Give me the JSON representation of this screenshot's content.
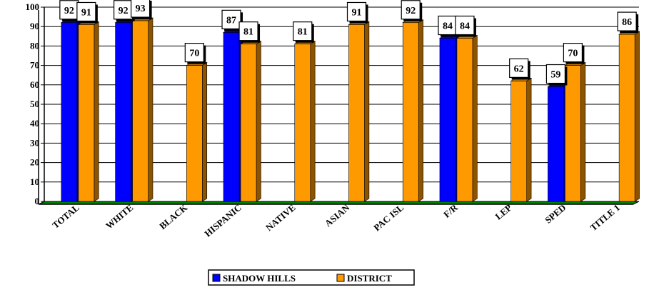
{
  "chart_data": {
    "type": "bar",
    "categories": [
      "TOTAL",
      "WHITE",
      "BLACK",
      "HISPANIC",
      "NATIVE",
      "ASIAN",
      "PAC ISL",
      "F/R",
      "LEP",
      "SPED",
      "TITLE 1"
    ],
    "series": [
      {
        "name": "SHADOW HILLS",
        "color": "#0000FF",
        "values": [
          92,
          92,
          null,
          87,
          null,
          null,
          null,
          84,
          null,
          59,
          null
        ]
      },
      {
        "name": "DISTRICT",
        "color": "#FF9900",
        "values": [
          91,
          93,
          70,
          81,
          81,
          91,
          92,
          84,
          62,
          70,
          86
        ]
      }
    ],
    "ylim": [
      0,
      100
    ],
    "yticks": [
      0,
      10,
      20,
      30,
      40,
      50,
      60,
      70,
      80,
      90,
      100
    ],
    "grid": true,
    "legend_position": "bottom"
  }
}
